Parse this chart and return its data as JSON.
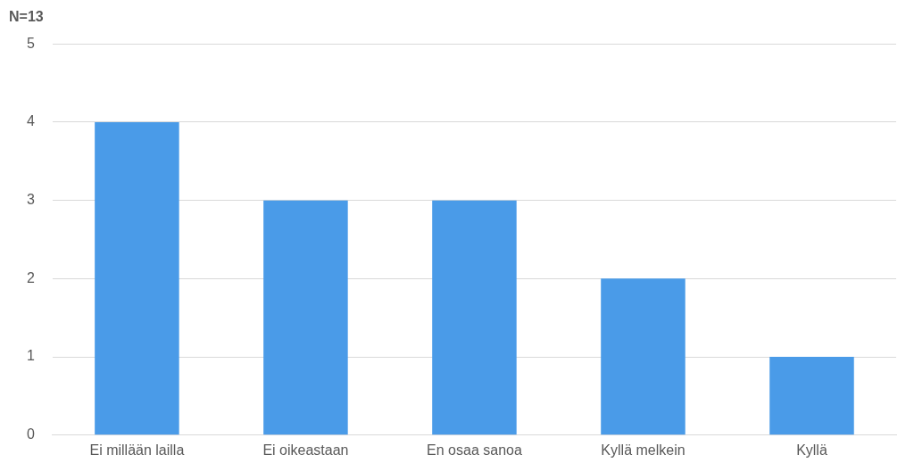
{
  "chart_data": {
    "type": "bar",
    "title": "N=13",
    "categories": [
      "Ei millään lailla",
      "Ei oikeastaan",
      "En osaa sanoa",
      "Kyllä melkein",
      "Kyllä"
    ],
    "values": [
      4,
      3,
      3,
      2,
      1
    ],
    "color": "#4a9be8",
    "ylim": [
      0,
      5
    ],
    "yticks": [
      0,
      1,
      2,
      3,
      4,
      5
    ],
    "grid": "y",
    "legend": false
  }
}
